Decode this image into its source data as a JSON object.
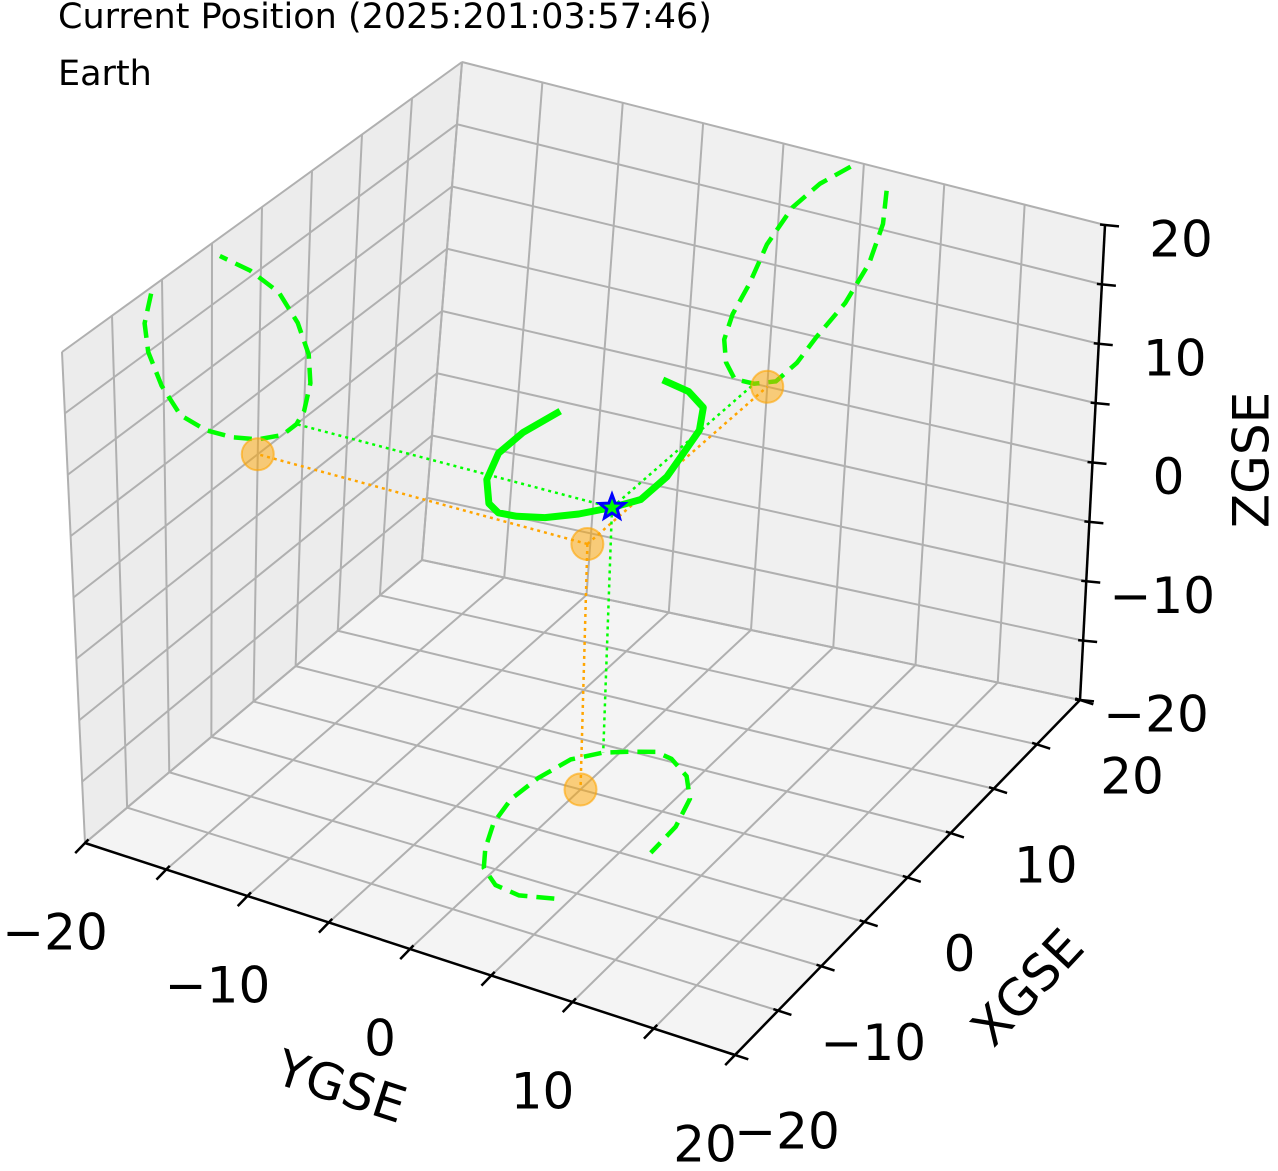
{
  "chart_data": {
    "type": "line3d",
    "xlabel": "XGSE",
    "ylabel": "YGSE",
    "zlabel": "ZGSE",
    "xlim": [
      -20,
      20
    ],
    "ylim": [
      -20,
      20
    ],
    "zlim": [
      -20,
      20
    ],
    "xticks": [
      {
        "value": -20,
        "label": "−20"
      },
      {
        "value": -10,
        "label": "−10"
      },
      0,
      10,
      20
    ],
    "yticks": [
      {
        "value": -20,
        "label": "−20"
      },
      {
        "value": -10,
        "label": "−10"
      },
      0,
      10,
      20
    ],
    "zticks": [
      {
        "value": -20,
        "label": "−20"
      },
      {
        "value": -10,
        "label": "−10"
      },
      0,
      10,
      20
    ],
    "xminorticks": [
      -15,
      -5,
      5,
      15
    ],
    "yminorticks": [
      -15,
      -5,
      5,
      15
    ],
    "zminorticks": [
      -15,
      -5,
      5,
      15
    ],
    "grid": true,
    "trajectory": {
      "color": "#00ff00",
      "x": [
        -11.1,
        -11.8,
        -11.5,
        -10.2,
        -8.3,
        -5.6,
        -2.8,
        0,
        2.7,
        4.2,
        5.0,
        5.6,
        5.3,
        4.0,
        1.9,
        -1.1,
        -4.2
      ],
      "y": [
        4.2,
        2.4,
        0.8,
        -0.6,
        -1.5,
        -2.4,
        -2.8,
        -2.6,
        -2.0,
        -0.8,
        0.5,
        1.7,
        2.8,
        4.4,
        5.7,
        6.4,
        6.5
      ],
      "z": [
        19.5,
        17.5,
        15,
        11.5,
        8,
        5.2,
        3,
        1.2,
        0,
        0,
        0.6,
        2.5,
        5,
        8.3,
        12,
        15.5,
        18.5
      ]
    },
    "current_position": {
      "label": "Current Position (2025:201:03:57:46)",
      "color": "blue",
      "x": 4.2,
      "y": -0.8,
      "z": 0
    },
    "earth": {
      "label": "Earth",
      "color": "orange",
      "x": 0,
      "y": 0,
      "z": 0
    }
  }
}
